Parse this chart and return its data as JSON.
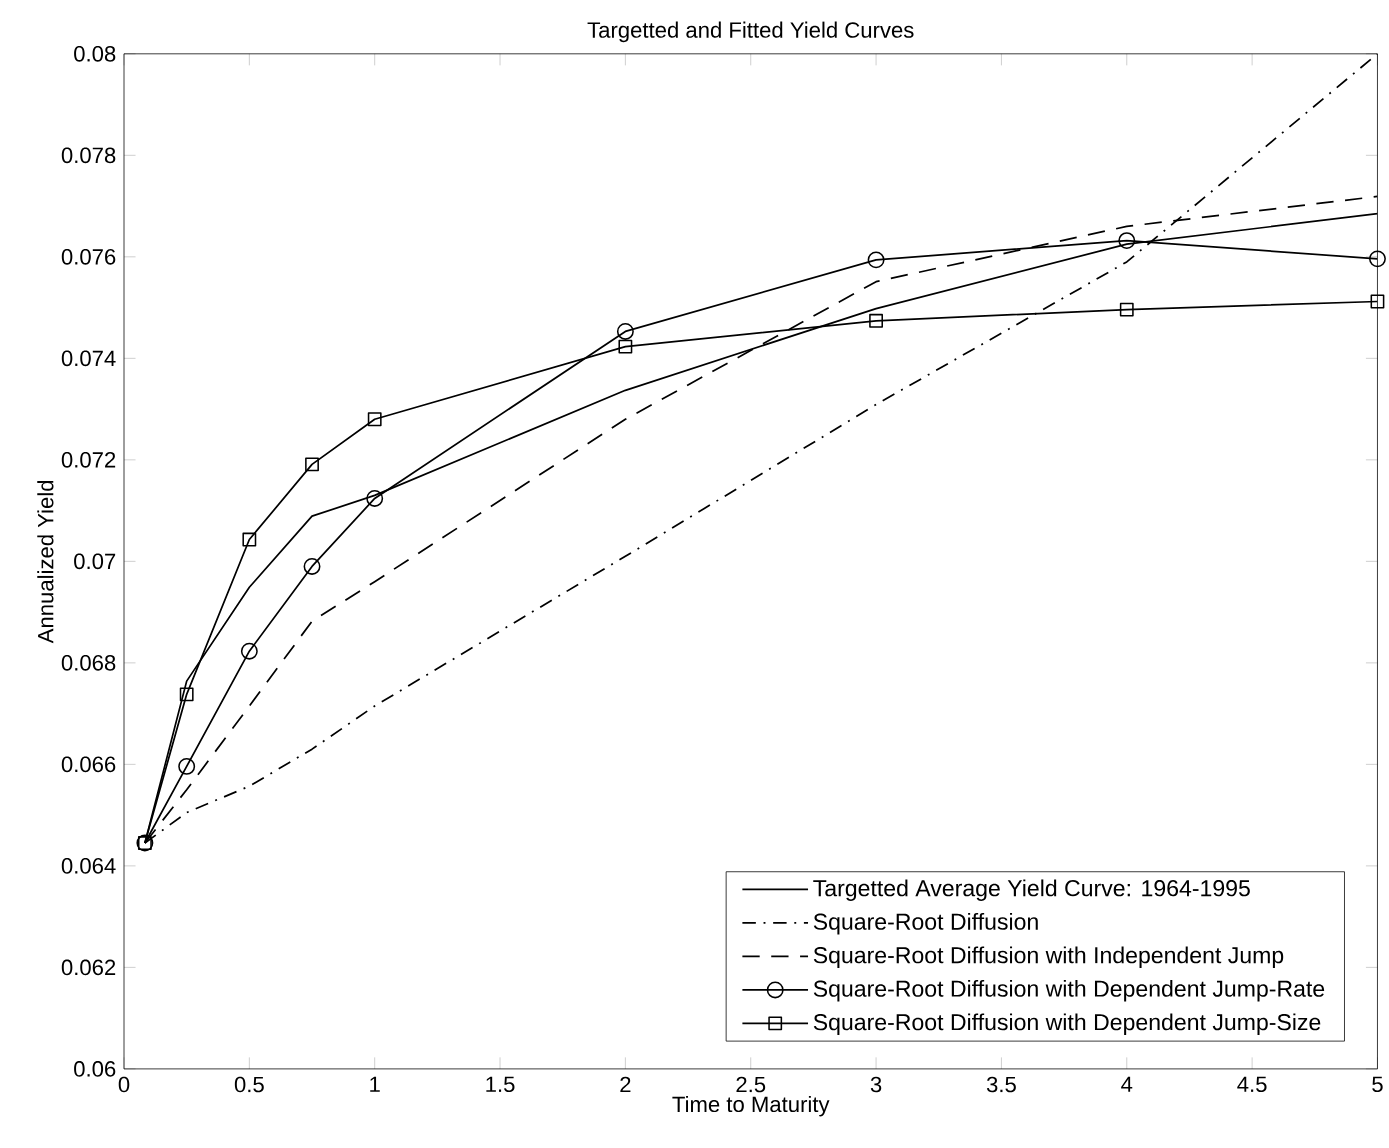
{
  "chart_data": {
    "type": "line",
    "title": "Targetted and Fitted Yield Curves",
    "xlabel": "Time to Maturity",
    "ylabel": "Annualized Yield",
    "x": [
      0.0833,
      0.25,
      0.5,
      0.75,
      1,
      2,
      3,
      4,
      5
    ],
    "xlim": [
      0,
      5
    ],
    "xticks": [
      0,
      0.5,
      1,
      1.5,
      2,
      2.5,
      3,
      3.5,
      4,
      4.5,
      5
    ],
    "ylim": [
      0.06,
      0.08
    ],
    "yticks": [
      0.06,
      0.062,
      0.064,
      0.066,
      0.068,
      0.07,
      0.072,
      0.074,
      0.076,
      0.078,
      0.08
    ],
    "legend": "bottom right",
    "grid": false,
    "series": [
      {
        "name": "Targetted Average Yield Curve: 1964-1995",
        "color": "#000000",
        "line_style": "solid",
        "marker": "none",
        "values": [
          0.06445,
          0.06764,
          0.06949,
          0.07089,
          0.0713,
          0.07337,
          0.07498,
          0.07625,
          0.07685
        ]
      },
      {
        "name": "Square-Root Diffusion",
        "color": "#000000",
        "line_style": "dashdot",
        "marker": "none",
        "values": [
          0.06445,
          0.06505,
          0.06557,
          0.0663,
          0.06715,
          0.0701,
          0.07309,
          0.0759,
          0.08
        ]
      },
      {
        "name": "Square-Root Diffusion with Independent Jump",
        "color": "#000000",
        "line_style": "dashed",
        "marker": "none",
        "values": [
          0.06445,
          0.0655,
          0.06715,
          0.06882,
          0.0696,
          0.0728,
          0.07551,
          0.0766,
          0.07719
        ]
      },
      {
        "name": "Square-Root Diffusion with Dependent Jump-Rate",
        "color": "#000000",
        "line_style": "solid",
        "marker": "circle",
        "values": [
          0.06445,
          0.06596,
          0.06823,
          0.0699,
          0.07124,
          0.07453,
          0.07594,
          0.07632,
          0.07596
        ]
      },
      {
        "name": "Square-Root Diffusion with Dependent Jump-Size",
        "color": "#000000",
        "line_style": "solid",
        "marker": "square",
        "values": [
          0.06445,
          0.06738,
          0.07043,
          0.07191,
          0.0728,
          0.07423,
          0.07474,
          0.07496,
          0.07512
        ]
      }
    ]
  }
}
